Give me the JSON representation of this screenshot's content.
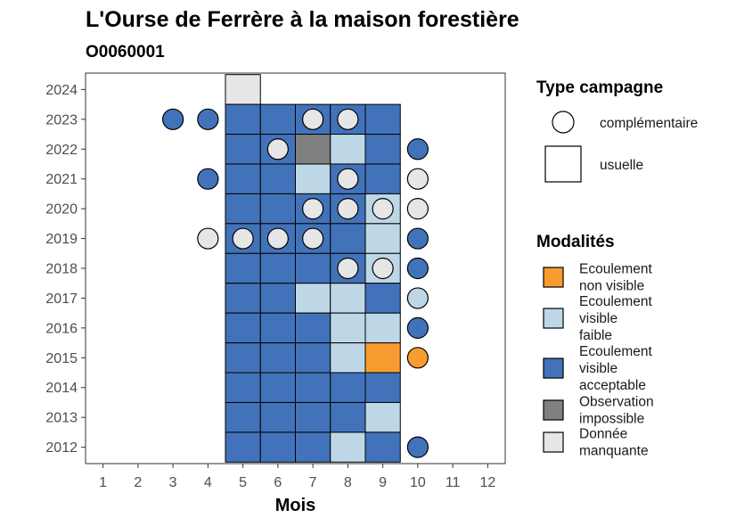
{
  "chart_data": {
    "type": "heatmap",
    "title": "L'Ourse de Ferrère à la maison forestière",
    "subtitle": "O0060001",
    "xlabel": "Mois",
    "ylabel": "",
    "x_ticks": [
      1,
      2,
      3,
      4,
      5,
      6,
      7,
      8,
      9,
      10,
      11,
      12
    ],
    "y_ticks": [
      2012,
      2013,
      2014,
      2015,
      2016,
      2017,
      2018,
      2019,
      2020,
      2021,
      2022,
      2023,
      2024
    ],
    "xlim": [
      0.5,
      12.5
    ],
    "ylim": [
      2011.45,
      2024.55
    ],
    "grid": false,
    "legend_placement": "right",
    "legend_type": {
      "title": "Type campagne",
      "entries": [
        {
          "key": "complementaire",
          "label": "complémentaire",
          "shape": "circle"
        },
        {
          "key": "usuelle",
          "label": "usuelle",
          "shape": "square"
        }
      ]
    },
    "legend_modalites": {
      "title": "Modalités",
      "entries": [
        {
          "key": "ENV",
          "lines": [
            "Ecoulement",
            "non visible"
          ],
          "color": "#F89C31"
        },
        {
          "key": "EVF",
          "lines": [
            "Ecoulement",
            "visible",
            "faible"
          ],
          "color": "#BDD7E7"
        },
        {
          "key": "EVA",
          "lines": [
            "Ecoulement",
            "visible",
            "acceptable"
          ],
          "color": "#4273BA"
        },
        {
          "key": "OI",
          "lines": [
            "Observation",
            "impossible"
          ],
          "color": "#808080"
        },
        {
          "key": "DM",
          "lines": [
            "Donnée",
            "manquante"
          ],
          "color": "#E6E6E6"
        }
      ]
    },
    "usuelle": [
      {
        "year": 2024,
        "values": [
          "",
          "",
          "",
          "",
          "DM",
          "",
          "",
          "",
          "",
          "",
          "",
          ""
        ]
      },
      {
        "year": 2023,
        "values": [
          "",
          "",
          "",
          "",
          "EVA",
          "EVA",
          "EVA",
          "EVA",
          "EVA",
          "",
          "",
          ""
        ]
      },
      {
        "year": 2022,
        "values": [
          "",
          "",
          "",
          "",
          "EVA",
          "EVA",
          "OI",
          "EVF",
          "EVA",
          "",
          "",
          ""
        ]
      },
      {
        "year": 2021,
        "values": [
          "",
          "",
          "",
          "",
          "EVA",
          "EVA",
          "EVF",
          "EVA",
          "EVA",
          "",
          "",
          ""
        ]
      },
      {
        "year": 2020,
        "values": [
          "",
          "",
          "",
          "",
          "EVA",
          "EVA",
          "EVA",
          "EVA",
          "EVF",
          "",
          "",
          ""
        ]
      },
      {
        "year": 2019,
        "values": [
          "",
          "",
          "",
          "",
          "EVA",
          "EVA",
          "EVA",
          "EVA",
          "EVF",
          "",
          "",
          ""
        ]
      },
      {
        "year": 2018,
        "values": [
          "",
          "",
          "",
          "",
          "EVA",
          "EVA",
          "EVA",
          "EVA",
          "EVF",
          "",
          "",
          ""
        ]
      },
      {
        "year": 2017,
        "values": [
          "",
          "",
          "",
          "",
          "EVA",
          "EVA",
          "EVF",
          "EVF",
          "EVA",
          "",
          "",
          ""
        ]
      },
      {
        "year": 2016,
        "values": [
          "",
          "",
          "",
          "",
          "EVA",
          "EVA",
          "EVA",
          "EVF",
          "EVF",
          "",
          "",
          ""
        ]
      },
      {
        "year": 2015,
        "values": [
          "",
          "",
          "",
          "",
          "EVA",
          "EVA",
          "EVA",
          "EVF",
          "ENV",
          "",
          "",
          ""
        ]
      },
      {
        "year": 2014,
        "values": [
          "",
          "",
          "",
          "",
          "EVA",
          "EVA",
          "EVA",
          "EVA",
          "EVA",
          "",
          "",
          ""
        ]
      },
      {
        "year": 2013,
        "values": [
          "",
          "",
          "",
          "",
          "EVA",
          "EVA",
          "EVA",
          "EVA",
          "EVF",
          "",
          "",
          ""
        ]
      },
      {
        "year": 2012,
        "values": [
          "",
          "",
          "",
          "",
          "EVA",
          "EVA",
          "EVA",
          "EVF",
          "EVA",
          "",
          "",
          ""
        ]
      }
    ],
    "complementaire": [
      {
        "month": 3,
        "year": 2023,
        "value": "EVA"
      },
      {
        "month": 4,
        "year": 2023,
        "value": "EVA"
      },
      {
        "month": 7,
        "year": 2023,
        "value": "DM"
      },
      {
        "month": 8,
        "year": 2023,
        "value": "DM"
      },
      {
        "month": 6,
        "year": 2022,
        "value": "DM"
      },
      {
        "month": 10,
        "year": 2022,
        "value": "EVA"
      },
      {
        "month": 4,
        "year": 2021,
        "value": "EVA"
      },
      {
        "month": 8,
        "year": 2021,
        "value": "DM"
      },
      {
        "month": 10,
        "year": 2021,
        "value": "DM"
      },
      {
        "month": 7,
        "year": 2020,
        "value": "DM"
      },
      {
        "month": 8,
        "year": 2020,
        "value": "DM"
      },
      {
        "month": 9,
        "year": 2020,
        "value": "DM"
      },
      {
        "month": 10,
        "year": 2020,
        "value": "DM"
      },
      {
        "month": 4,
        "year": 2019,
        "value": "DM"
      },
      {
        "month": 5,
        "year": 2019,
        "value": "DM"
      },
      {
        "month": 6,
        "year": 2019,
        "value": "DM"
      },
      {
        "month": 7,
        "year": 2019,
        "value": "DM"
      },
      {
        "month": 10,
        "year": 2019,
        "value": "EVA"
      },
      {
        "month": 8,
        "year": 2018,
        "value": "DM"
      },
      {
        "month": 9,
        "year": 2018,
        "value": "DM"
      },
      {
        "month": 10,
        "year": 2018,
        "value": "EVA"
      },
      {
        "month": 10,
        "year": 2017,
        "value": "EVF"
      },
      {
        "month": 10,
        "year": 2016,
        "value": "EVA"
      },
      {
        "month": 10,
        "year": 2015,
        "value": "ENV"
      },
      {
        "month": 10,
        "year": 2012,
        "value": "EVA"
      }
    ]
  }
}
